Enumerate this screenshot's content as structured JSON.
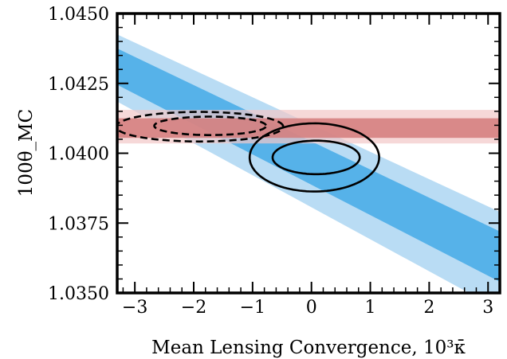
{
  "chart_data": {
    "type": "contour",
    "xlabel": "Mean Lensing Convergence, 10³κ̄",
    "ylabel": "100θ_MC",
    "xlim": [
      -3.3,
      3.2
    ],
    "ylim": [
      1.035,
      1.045
    ],
    "x_ticks": [
      -3,
      -2,
      -1,
      0,
      1,
      2,
      3
    ],
    "x_tick_labels": [
      "−3",
      "−2",
      "−1",
      "0",
      "1",
      "2",
      "3"
    ],
    "y_ticks": [
      1.035,
      1.0375,
      1.04,
      1.0425,
      1.045
    ],
    "y_tick_labels": [
      "1.0350",
      "1.0375",
      "1.0400",
      "1.0425",
      "1.0450"
    ],
    "grid": false,
    "bands": [
      {
        "kind": "diagonal",
        "level": "outer",
        "color": "#b9dcf4",
        "upper": [
          [
            -3.3,
            1.04425
          ],
          [
            3.2,
            1.0379
          ]
        ],
        "lower": [
          [
            -3.3,
            1.04185
          ],
          [
            3.2,
            1.0344
          ]
        ]
      },
      {
        "kind": "diagonal",
        "level": "inner",
        "color": "#56b2e9",
        "upper": [
          [
            -3.3,
            1.04375
          ],
          [
            3.2,
            1.0372
          ]
        ],
        "lower": [
          [
            -3.3,
            1.04245
          ],
          [
            3.2,
            1.0354
          ]
        ]
      },
      {
        "kind": "horizontal",
        "level": "outer",
        "color": "#f2c8c8",
        "y": [
          1.04035,
          1.04155
        ]
      },
      {
        "kind": "horizontal",
        "level": "inner",
        "color": "#d37b7b",
        "y": [
          1.04055,
          1.04125
        ]
      }
    ],
    "contours": [
      {
        "style": "solid",
        "level": "outer",
        "cx": 0.05,
        "cy": 1.03985,
        "rx": 1.1,
        "ry": 0.00122,
        "angle_deg": 34,
        "color": "#000000"
      },
      {
        "style": "solid",
        "level": "inner",
        "cx": 0.08,
        "cy": 1.03985,
        "rx": 0.74,
        "ry": 0.0006,
        "angle_deg": 30,
        "color": "#000000"
      },
      {
        "style": "dashed",
        "level": "outer",
        "cx": -1.9,
        "cy": 1.04095,
        "rx": 1.42,
        "ry": 0.00053,
        "angle_deg": -3,
        "color": "#000000"
      },
      {
        "style": "dashed",
        "level": "inner",
        "cx": -1.72,
        "cy": 1.04098,
        "rx": 0.95,
        "ry": 0.00033,
        "angle_deg": -3,
        "color": "#000000"
      }
    ]
  }
}
